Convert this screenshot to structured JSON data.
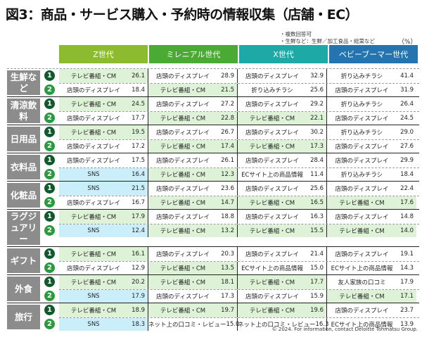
{
  "title": "図3：商品・サービス購入・予約時の情報収集（店舗・EC）",
  "notes": [
    "・複数回答可",
    "・生鮮など：生鮮／加工食品・総菜など"
  ],
  "unit": "（%）",
  "ranks": [
    "1",
    "2"
  ],
  "columns": [
    {
      "label": "Z世代",
      "color": "#8dbb2f"
    },
    {
      "label": "ミレニアル世代",
      "color": "#4aaa34"
    },
    {
      "label": "X世代",
      "color": "#1fa9a6"
    },
    {
      "label": "ベビーブーマー世代",
      "color": "#2474b0"
    }
  ],
  "highlight": {
    "テレビ番組・CM": "green",
    "SNS": "blue"
  },
  "categories": [
    {
      "label": "生鮮など",
      "rows": [
        [
          [
            "テレビ番組・CM",
            "26.1"
          ],
          [
            "店頭のディスプレイ",
            "28.9"
          ],
          [
            "店頭のディスプレイ",
            "32.9"
          ],
          [
            "折り込みチラシ",
            "41.4"
          ]
        ],
        [
          [
            "店頭のディスプレイ",
            "18.4"
          ],
          [
            "テレビ番組・CM",
            "21.5"
          ],
          [
            "折り込みチラシ",
            "25.6"
          ],
          [
            "店頭のディスプレイ",
            "31.9"
          ]
        ]
      ]
    },
    {
      "label": "清涼飲料",
      "rows": [
        [
          [
            "テレビ番組・CM",
            "24.5"
          ],
          [
            "店頭のディスプレイ",
            "27.2"
          ],
          [
            "店頭のディスプレイ",
            "29.2"
          ],
          [
            "折り込みチラシ",
            "26.4"
          ]
        ],
        [
          [
            "店頭のディスプレイ",
            "17.7"
          ],
          [
            "テレビ番組・CM",
            "22.8"
          ],
          [
            "テレビ番組・CM",
            "22.1"
          ],
          [
            "店頭のディスプレイ",
            "24.5"
          ]
        ]
      ]
    },
    {
      "label": "日用品",
      "rows": [
        [
          [
            "テレビ番組・CM",
            "19.5"
          ],
          [
            "店頭のディスプレイ",
            "26.7"
          ],
          [
            "店頭のディスプレイ",
            "30.2"
          ],
          [
            "折り込みチラシ",
            "29.0"
          ]
        ],
        [
          [
            "店頭のディスプレイ",
            "17.2"
          ],
          [
            "テレビ番組・CM",
            "17.4"
          ],
          [
            "テレビ番組・CM",
            "17.3"
          ],
          [
            "店頭のディスプレイ",
            "27.6"
          ]
        ]
      ]
    },
    {
      "label": "衣料品",
      "rows": [
        [
          [
            "店頭のディスプレイ",
            "17.5"
          ],
          [
            "店頭のディスプレイ",
            "26.1"
          ],
          [
            "店頭のディスプレイ",
            "28.4"
          ],
          [
            "店頭のディスプレイ",
            "29.9"
          ]
        ],
        [
          [
            "SNS",
            "16.4"
          ],
          [
            "テレビ番組・CM",
            "12.3"
          ],
          [
            "ECサイト上の商品情報",
            "11.4"
          ],
          [
            "折り込みチラシ",
            "18.4"
          ]
        ]
      ]
    },
    {
      "label": "化粧品",
      "rows": [
        [
          [
            "SNS",
            "21.5"
          ],
          [
            "店頭のディスプレイ",
            "23.6"
          ],
          [
            "店頭のディスプレイ",
            "25.6"
          ],
          [
            "店頭のディスプレイ",
            "22.4"
          ]
        ],
        [
          [
            "店頭のディスプレイ",
            "16.7"
          ],
          [
            "テレビ番組・CM",
            "14.7"
          ],
          [
            "テレビ番組・CM",
            "16.5"
          ],
          [
            "テレビ番組・CM",
            "17.6"
          ]
        ]
      ]
    },
    {
      "label": "ラグジュアリー",
      "rows": [
        [
          [
            "テレビ番組・CM",
            "17.9"
          ],
          [
            "店頭のディスプレイ",
            "18.8"
          ],
          [
            "店頭のディスプレイ",
            "16.3"
          ],
          [
            "店頭のディスプレイ",
            "14.8"
          ]
        ],
        [
          [
            "SNS",
            "12.4"
          ],
          [
            "テレビ番組・CM",
            "13.2"
          ],
          [
            "テレビ番組・CM",
            "15.5"
          ],
          [
            "テレビ番組・CM",
            "14.0"
          ]
        ]
      ]
    },
    {
      "label": "ギフト",
      "rows": [
        [
          [
            "テレビ番組・CM",
            "16.1"
          ],
          [
            "店頭のディスプレイ",
            "20.3"
          ],
          [
            "店頭のディスプレイ",
            "21.4"
          ],
          [
            "店頭のディスプレイ",
            "19.1"
          ]
        ],
        [
          [
            "店頭のディスプレイ",
            "12.9"
          ],
          [
            "テレビ番組・CM",
            "13.5"
          ],
          [
            "ECサイト上の商品情報",
            "15.0"
          ],
          [
            "ECサイト上の商品情報",
            "14.3"
          ]
        ]
      ]
    },
    {
      "label": "外食",
      "rows": [
        [
          [
            "テレビ番組・CM",
            "20.2"
          ],
          [
            "テレビ番組・CM",
            "18.1"
          ],
          [
            "テレビ番組・CM",
            "17.7"
          ],
          [
            "友人家族の口コミ",
            "17.9"
          ]
        ],
        [
          [
            "SNS",
            "17.9"
          ],
          [
            "店頭のディスプレイ",
            "17.3"
          ],
          [
            "店頭のディスプレイ",
            "15.9"
          ],
          [
            "テレビ番組・CM",
            "17.1"
          ]
        ]
      ]
    },
    {
      "label": "旅行",
      "rows": [
        [
          [
            "テレビ番組・CM",
            "18.9"
          ],
          [
            "テレビ番組・CM",
            "19.7"
          ],
          [
            "テレビ番組・CM",
            "19.6"
          ],
          [
            "店頭のディスプレイ",
            "23.7"
          ]
        ],
        [
          [
            "SNS",
            "18.3"
          ],
          [
            "ネット上の口コミ・レビュー",
            "15.0"
          ],
          [
            "ネット上の口コミ・レビュー",
            "16.3"
          ],
          [
            "ECサイト上の商品情報",
            "13.9"
          ]
        ]
      ]
    }
  ],
  "footer": "© 2024. For information, contact Deloitte Tohmatsu Group."
}
